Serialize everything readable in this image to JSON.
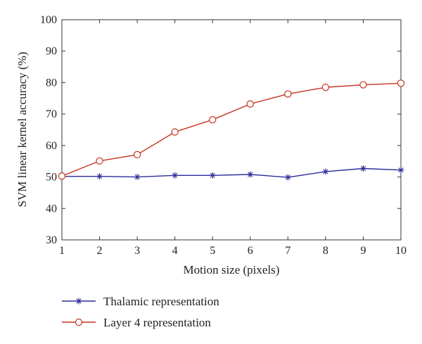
{
  "chart_data": {
    "type": "line",
    "xlabel": "Motion size (pixels)",
    "ylabel": "SVM linear kernel accuracy (%)",
    "x": [
      1,
      2,
      3,
      4,
      5,
      6,
      7,
      8,
      9,
      10
    ],
    "xlim": [
      1,
      10
    ],
    "ylim": [
      30,
      100
    ],
    "xticks": [
      "1",
      "2",
      "3",
      "4",
      "5",
      "6",
      "7",
      "8",
      "9",
      "10"
    ],
    "yticks": [
      "30",
      "40",
      "50",
      "60",
      "70",
      "80",
      "90",
      "100"
    ],
    "grid": false,
    "legend_position": "bottom-left, below plot",
    "series": [
      {
        "name": "Thalamic representation",
        "color": "#2b2b9b",
        "marker": "asterisk",
        "values": [
          50.2,
          50.2,
          50.0,
          50.5,
          50.5,
          50.8,
          49.9,
          51.7,
          52.7,
          52.2
        ]
      },
      {
        "name": "Layer 4 representation",
        "color": "#c8321e",
        "marker": "circle",
        "values": [
          50.3,
          55.1,
          57.1,
          64.3,
          68.2,
          73.2,
          76.4,
          78.5,
          79.3,
          79.8
        ]
      }
    ]
  }
}
